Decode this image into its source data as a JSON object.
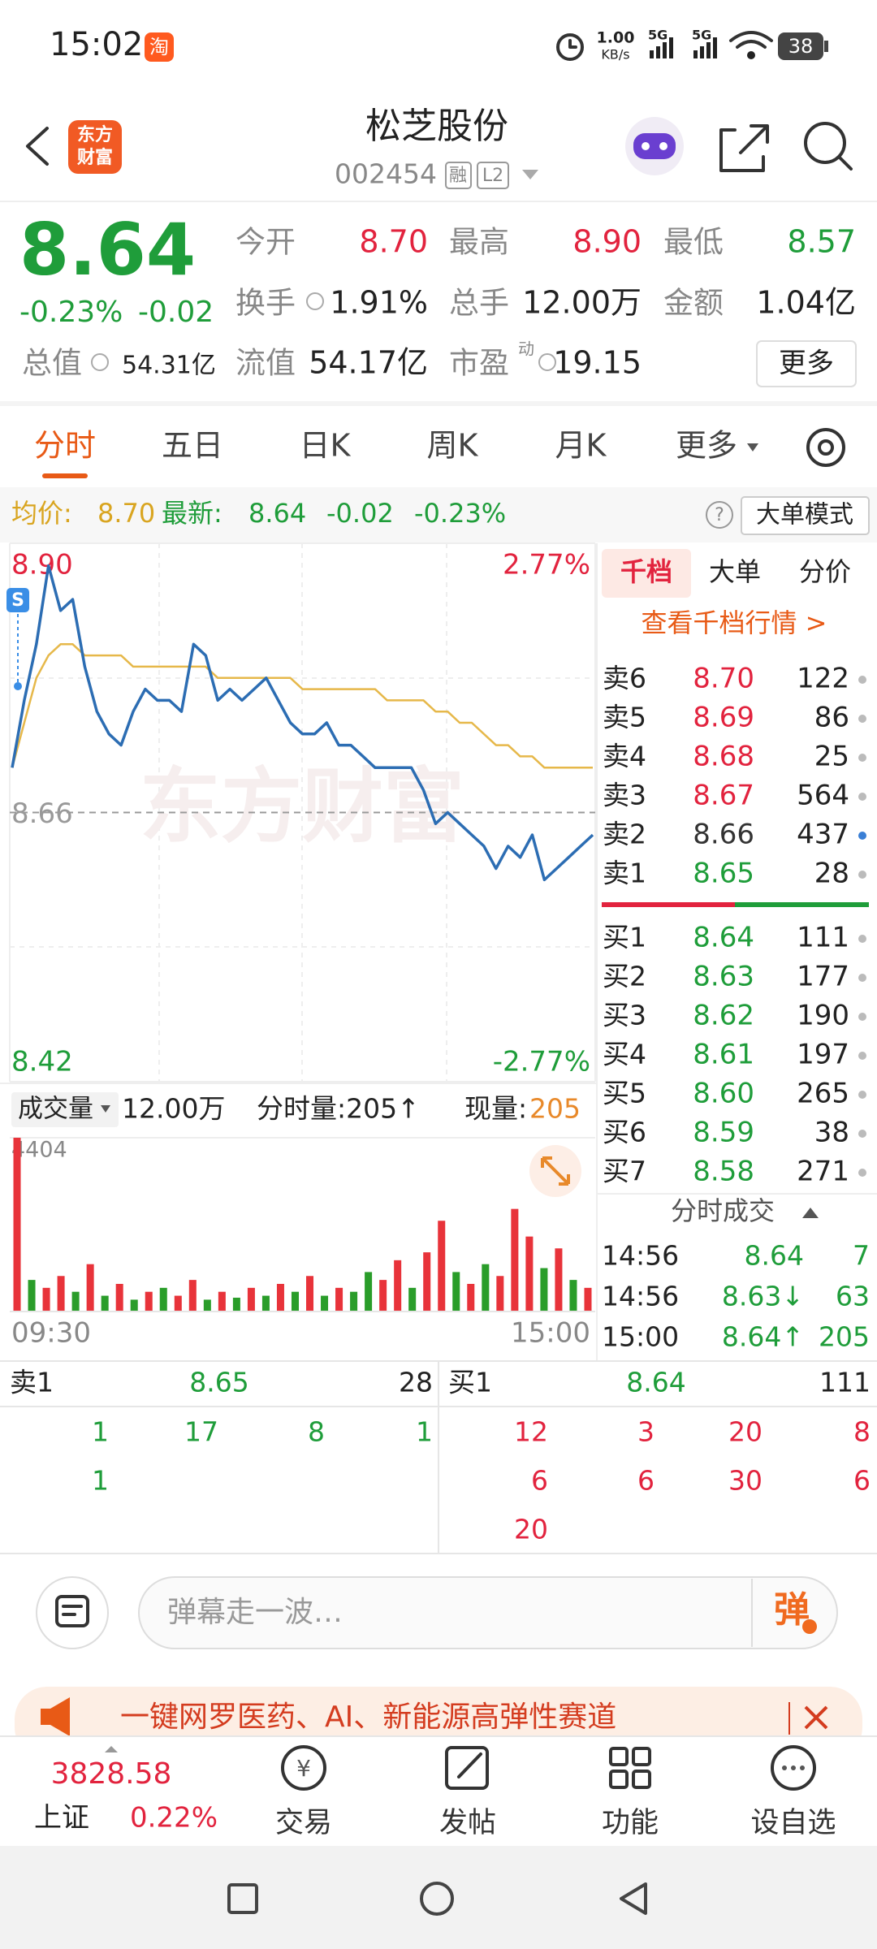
{
  "status_bar": {
    "time": "15:02",
    "app_icon": "淘",
    "net_speed": "1.00",
    "net_unit": "KB/s",
    "signal_1": "5G",
    "signal_2": "5G",
    "battery": "38"
  },
  "header": {
    "logo_line_1": "东方",
    "logo_line_2": "财富",
    "title": "松芝股份",
    "code": "002454",
    "tags": [
      "融",
      "L2"
    ]
  },
  "quote": {
    "price": "8.64",
    "change_pct": "-0.23%",
    "change": "-0.02",
    "color": "#1f9d3a",
    "total_value": {
      "label": "总值",
      "value": "54.31亿"
    },
    "fields": [
      {
        "label": "今开",
        "value": "8.70",
        "color": "#e2233e"
      },
      {
        "label": "最高",
        "value": "8.90",
        "color": "#e2233e"
      },
      {
        "label": "最低",
        "value": "8.57",
        "color": "#1f9d3a"
      },
      {
        "label": "换手",
        "value": "1.91%",
        "color": "#222222"
      },
      {
        "label": "总手",
        "value": "12.00万",
        "color": "#222222"
      },
      {
        "label": "金额",
        "value": "1.04亿",
        "color": "#222222"
      },
      {
        "label": "流值",
        "value": "54.17亿",
        "color": "#222222"
      },
      {
        "label": "市盈",
        "sup": "动",
        "value": "19.15",
        "color": "#222222"
      }
    ],
    "more": "更多"
  },
  "tabs": [
    "分时",
    "五日",
    "日K",
    "周K",
    "月K",
    "更多"
  ],
  "info": {
    "avg_label": "均价:",
    "avg": "8.70",
    "latest_label": "最新:",
    "latest": "8.64",
    "change": "-0.02",
    "change_pct": "-0.23%",
    "help": "?",
    "mode": "大单模式"
  },
  "watermark": "东方财富",
  "chart_badge": "S",
  "chart_data": [
    {
      "type": "line",
      "ylim": [
        8.42,
        8.9
      ],
      "yticks": [
        {
          "value": 8.9,
          "label": "8.90"
        },
        8.66,
        8.42
      ],
      "ytick_colors": [
        "#e2233e",
        "#999999",
        "#1f9d3a"
      ],
      "y2lim": [
        -2.77,
        2.77
      ],
      "y2ticks": [
        {
          "value": 2.77,
          "label": "2.77%"
        },
        {
          "value": -2.77,
          "label": "-2.77%"
        }
      ],
      "y2tick_colors": [
        "#e2233e",
        "#1f9d3a"
      ],
      "series": [
        {
          "color": "#2c6db3",
          "values": [
            8.7,
            8.76,
            8.81,
            8.88,
            8.84,
            8.85,
            8.79,
            8.75,
            8.73,
            8.72,
            8.75,
            8.77,
            8.76,
            8.76,
            8.75,
            8.81,
            8.8,
            8.76,
            8.77,
            8.76,
            8.77,
            8.78,
            8.76,
            8.74,
            8.73,
            8.73,
            8.74,
            8.72,
            8.72,
            8.71,
            8.7,
            8.7,
            8.7,
            8.7,
            8.68,
            8.65,
            8.66,
            8.65,
            8.64,
            8.63,
            8.61,
            8.63,
            8.62,
            8.64,
            8.6,
            8.61,
            8.62,
            8.63,
            8.64
          ]
        },
        {
          "color": "#e6b84a",
          "values": [
            8.7,
            8.74,
            8.78,
            8.8,
            8.81,
            8.81,
            8.8,
            8.8,
            8.8,
            8.8,
            8.79,
            8.79,
            8.79,
            8.79,
            8.79,
            8.79,
            8.79,
            8.78,
            8.78,
            8.78,
            8.78,
            8.78,
            8.78,
            8.78,
            8.77,
            8.77,
            8.77,
            8.77,
            8.77,
            8.77,
            8.77,
            8.76,
            8.76,
            8.76,
            8.76,
            8.75,
            8.75,
            8.74,
            8.74,
            8.73,
            8.72,
            8.72,
            8.71,
            8.71,
            8.7,
            8.7,
            8.7,
            8.7,
            8.7
          ]
        }
      ]
    },
    {
      "type": "bar",
      "header": {
        "selector": "成交量",
        "total": "12.00万",
        "minute": "分时量:205↑",
        "current_label": "现量:",
        "current": "205"
      },
      "ylim": [
        0,
        4404
      ],
      "yticks": [
        4404
      ],
      "xlabels": [
        "09:30",
        "15:00"
      ],
      "values": [
        4404,
        800,
        600,
        900,
        500,
        1200,
        400,
        700,
        300,
        500,
        600,
        400,
        800,
        300,
        500,
        350,
        600,
        400,
        700,
        500,
        900,
        400,
        600,
        500,
        1000,
        800,
        1300,
        600,
        1500,
        2300,
        1000,
        700,
        1200,
        900,
        2600,
        1900,
        1100,
        1600,
        800,
        600
      ],
      "colors": [
        "#e8333a",
        "#2a9d2a",
        "#e8333a",
        "#e8333a",
        "#2a9d2a",
        "#e8333a",
        "#2a9d2a",
        "#e8333a",
        "#2a9d2a",
        "#e8333a",
        "#2a9d2a",
        "#e8333a",
        "#e8333a",
        "#2a9d2a",
        "#e8333a",
        "#2a9d2a",
        "#e8333a",
        "#2a9d2a",
        "#e8333a",
        "#2a9d2a",
        "#e8333a",
        "#2a9d2a",
        "#e8333a",
        "#2a9d2a",
        "#2a9d2a",
        "#e8333a",
        "#e8333a",
        "#2a9d2a",
        "#e8333a",
        "#e8333a",
        "#2a9d2a",
        "#e8333a",
        "#2a9d2a",
        "#e8333a",
        "#e8333a",
        "#e8333a",
        "#2a9d2a",
        "#e8333a",
        "#2a9d2a",
        "#e8333a"
      ]
    }
  ],
  "order_book": {
    "tabs": [
      "千档",
      "大单",
      "分价"
    ],
    "link": "查看千档行情 >",
    "asks": [
      {
        "label": "卖6",
        "price": "8.70",
        "volume": "122",
        "color": "#e2233e",
        "dot": "#bbbbbb"
      },
      {
        "label": "卖5",
        "price": "8.69",
        "volume": "86",
        "color": "#e2233e",
        "dot": "#bbbbbb"
      },
      {
        "label": "卖4",
        "price": "8.68",
        "volume": "25",
        "color": "#e2233e",
        "dot": "#bbbbbb"
      },
      {
        "label": "卖3",
        "price": "8.67",
        "volume": "564",
        "color": "#e2233e",
        "dot": "#bbbbbb"
      },
      {
        "label": "卖2",
        "price": "8.66",
        "volume": "437",
        "color": "#333333",
        "dot": "#3a7fd5"
      },
      {
        "label": "卖1",
        "price": "8.65",
        "volume": "28",
        "color": "#1f9d3a",
        "dot": "#bbbbbb"
      }
    ],
    "bids": [
      {
        "label": "买1",
        "price": "8.64",
        "volume": "111",
        "color": "#1f9d3a",
        "dot": "#bbbbbb"
      },
      {
        "label": "买2",
        "price": "8.63",
        "volume": "177",
        "color": "#1f9d3a",
        "dot": "#bbbbbb"
      },
      {
        "label": "买3",
        "price": "8.62",
        "volume": "190",
        "color": "#1f9d3a",
        "dot": "#bbbbbb"
      },
      {
        "label": "买4",
        "price": "8.61",
        "volume": "197",
        "color": "#1f9d3a",
        "dot": "#bbbbbb"
      },
      {
        "label": "买5",
        "price": "8.60",
        "volume": "265",
        "color": "#1f9d3a",
        "dot": "#bbbbbb"
      },
      {
        "label": "买6",
        "price": "8.59",
        "volume": "38",
        "color": "#1f9d3a",
        "dot": "#bbbbbb"
      },
      {
        "label": "买7",
        "price": "8.58",
        "volume": "271",
        "color": "#1f9d3a",
        "dot": "#bbbbbb"
      }
    ],
    "trades_title": "分时成交",
    "trades": [
      {
        "time": "14:56",
        "price": "8.64",
        "volume": "7"
      },
      {
        "time": "14:56",
        "price": "8.63↓",
        "volume": "63"
      },
      {
        "time": "15:00",
        "price": "8.64↑",
        "volume": "205"
      }
    ]
  },
  "level1": {
    "ask": {
      "label": "卖1",
      "price": "8.65",
      "volume": "28"
    },
    "bid": {
      "label": "买1",
      "price": "8.64",
      "volume": "111"
    },
    "ask_queue": [
      [
        "1",
        "17",
        "8",
        "1"
      ],
      [
        "1"
      ]
    ],
    "bid_queue": [
      [
        "12",
        "3",
        "20",
        "8"
      ],
      [
        "6",
        "6",
        "30",
        "6"
      ],
      [
        "20"
      ]
    ]
  },
  "comment": {
    "placeholder": "弹幕走一波…",
    "button": "弹"
  },
  "ad": {
    "text": "一键网罗医药、AI、新能源高弹性赛道"
  },
  "nav": {
    "index_value": "3828.58",
    "index_name": "上证",
    "index_change": "0.22%",
    "trade_icon": "¥",
    "items": [
      "交易",
      "发帖",
      "功能",
      "设自选"
    ]
  }
}
